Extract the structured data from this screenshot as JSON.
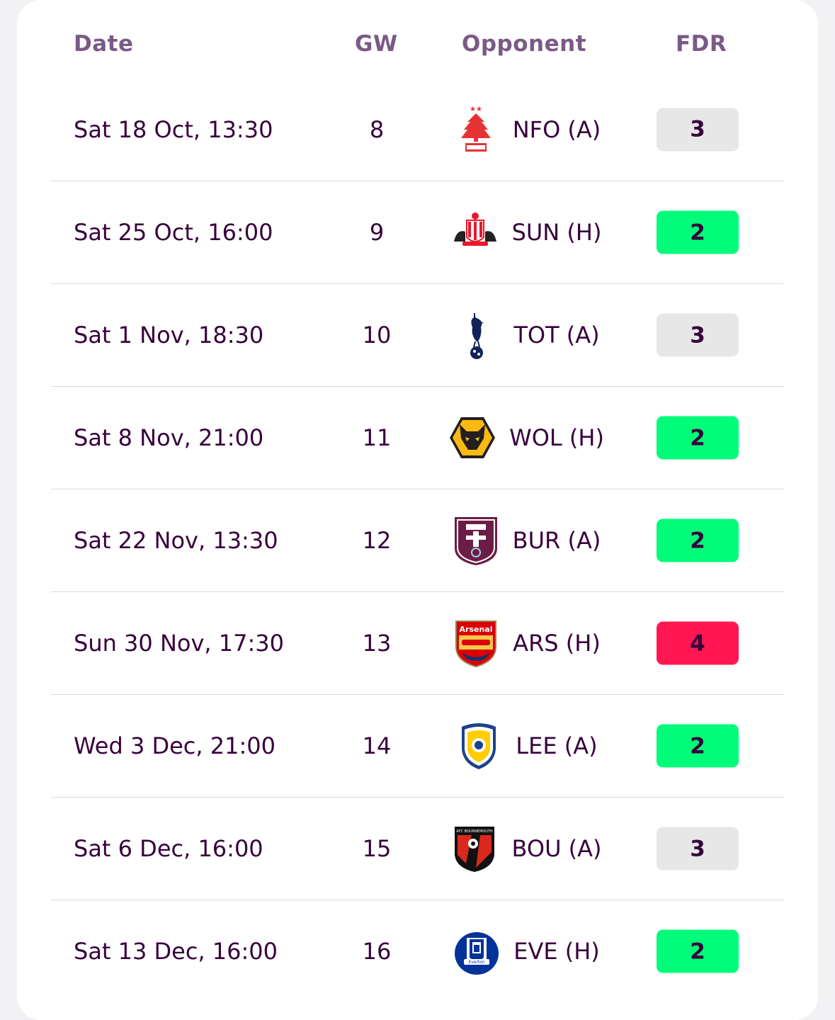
{
  "headers": {
    "date": "Date",
    "gw": "GW",
    "opponent": "Opponent",
    "fdr": "FDR"
  },
  "fdr_colors": {
    "2": "#01fc7a",
    "3": "#e7e7e7",
    "4": "#ff1751"
  },
  "fixtures": [
    {
      "date": "Sat 18 Oct, 13:30",
      "gw": "8",
      "opponent": "NFO (A)",
      "crest": "nottingham-forest-crest-icon",
      "fdr": "3"
    },
    {
      "date": "Sat 25 Oct, 16:00",
      "gw": "9",
      "opponent": "SUN (H)",
      "crest": "sunderland-crest-icon",
      "fdr": "2"
    },
    {
      "date": "Sat 1 Nov, 18:30",
      "gw": "10",
      "opponent": "TOT (A)",
      "crest": "tottenham-crest-icon",
      "fdr": "3"
    },
    {
      "date": "Sat 8 Nov, 21:00",
      "gw": "11",
      "opponent": "WOL (H)",
      "crest": "wolves-crest-icon",
      "fdr": "2"
    },
    {
      "date": "Sat 22 Nov, 13:30",
      "gw": "12",
      "opponent": "BUR (A)",
      "crest": "burnley-crest-icon",
      "fdr": "2"
    },
    {
      "date": "Sun 30 Nov, 17:30",
      "gw": "13",
      "opponent": "ARS (H)",
      "crest": "arsenal-crest-icon",
      "fdr": "4"
    },
    {
      "date": "Wed 3 Dec, 21:00",
      "gw": "14",
      "opponent": "LEE (A)",
      "crest": "leeds-crest-icon",
      "fdr": "2"
    },
    {
      "date": "Sat 6 Dec, 16:00",
      "gw": "15",
      "opponent": "BOU (A)",
      "crest": "bournemouth-crest-icon",
      "fdr": "3"
    },
    {
      "date": "Sat 13 Dec, 16:00",
      "gw": "16",
      "opponent": "EVE (H)",
      "crest": "everton-crest-icon",
      "fdr": "2"
    }
  ]
}
